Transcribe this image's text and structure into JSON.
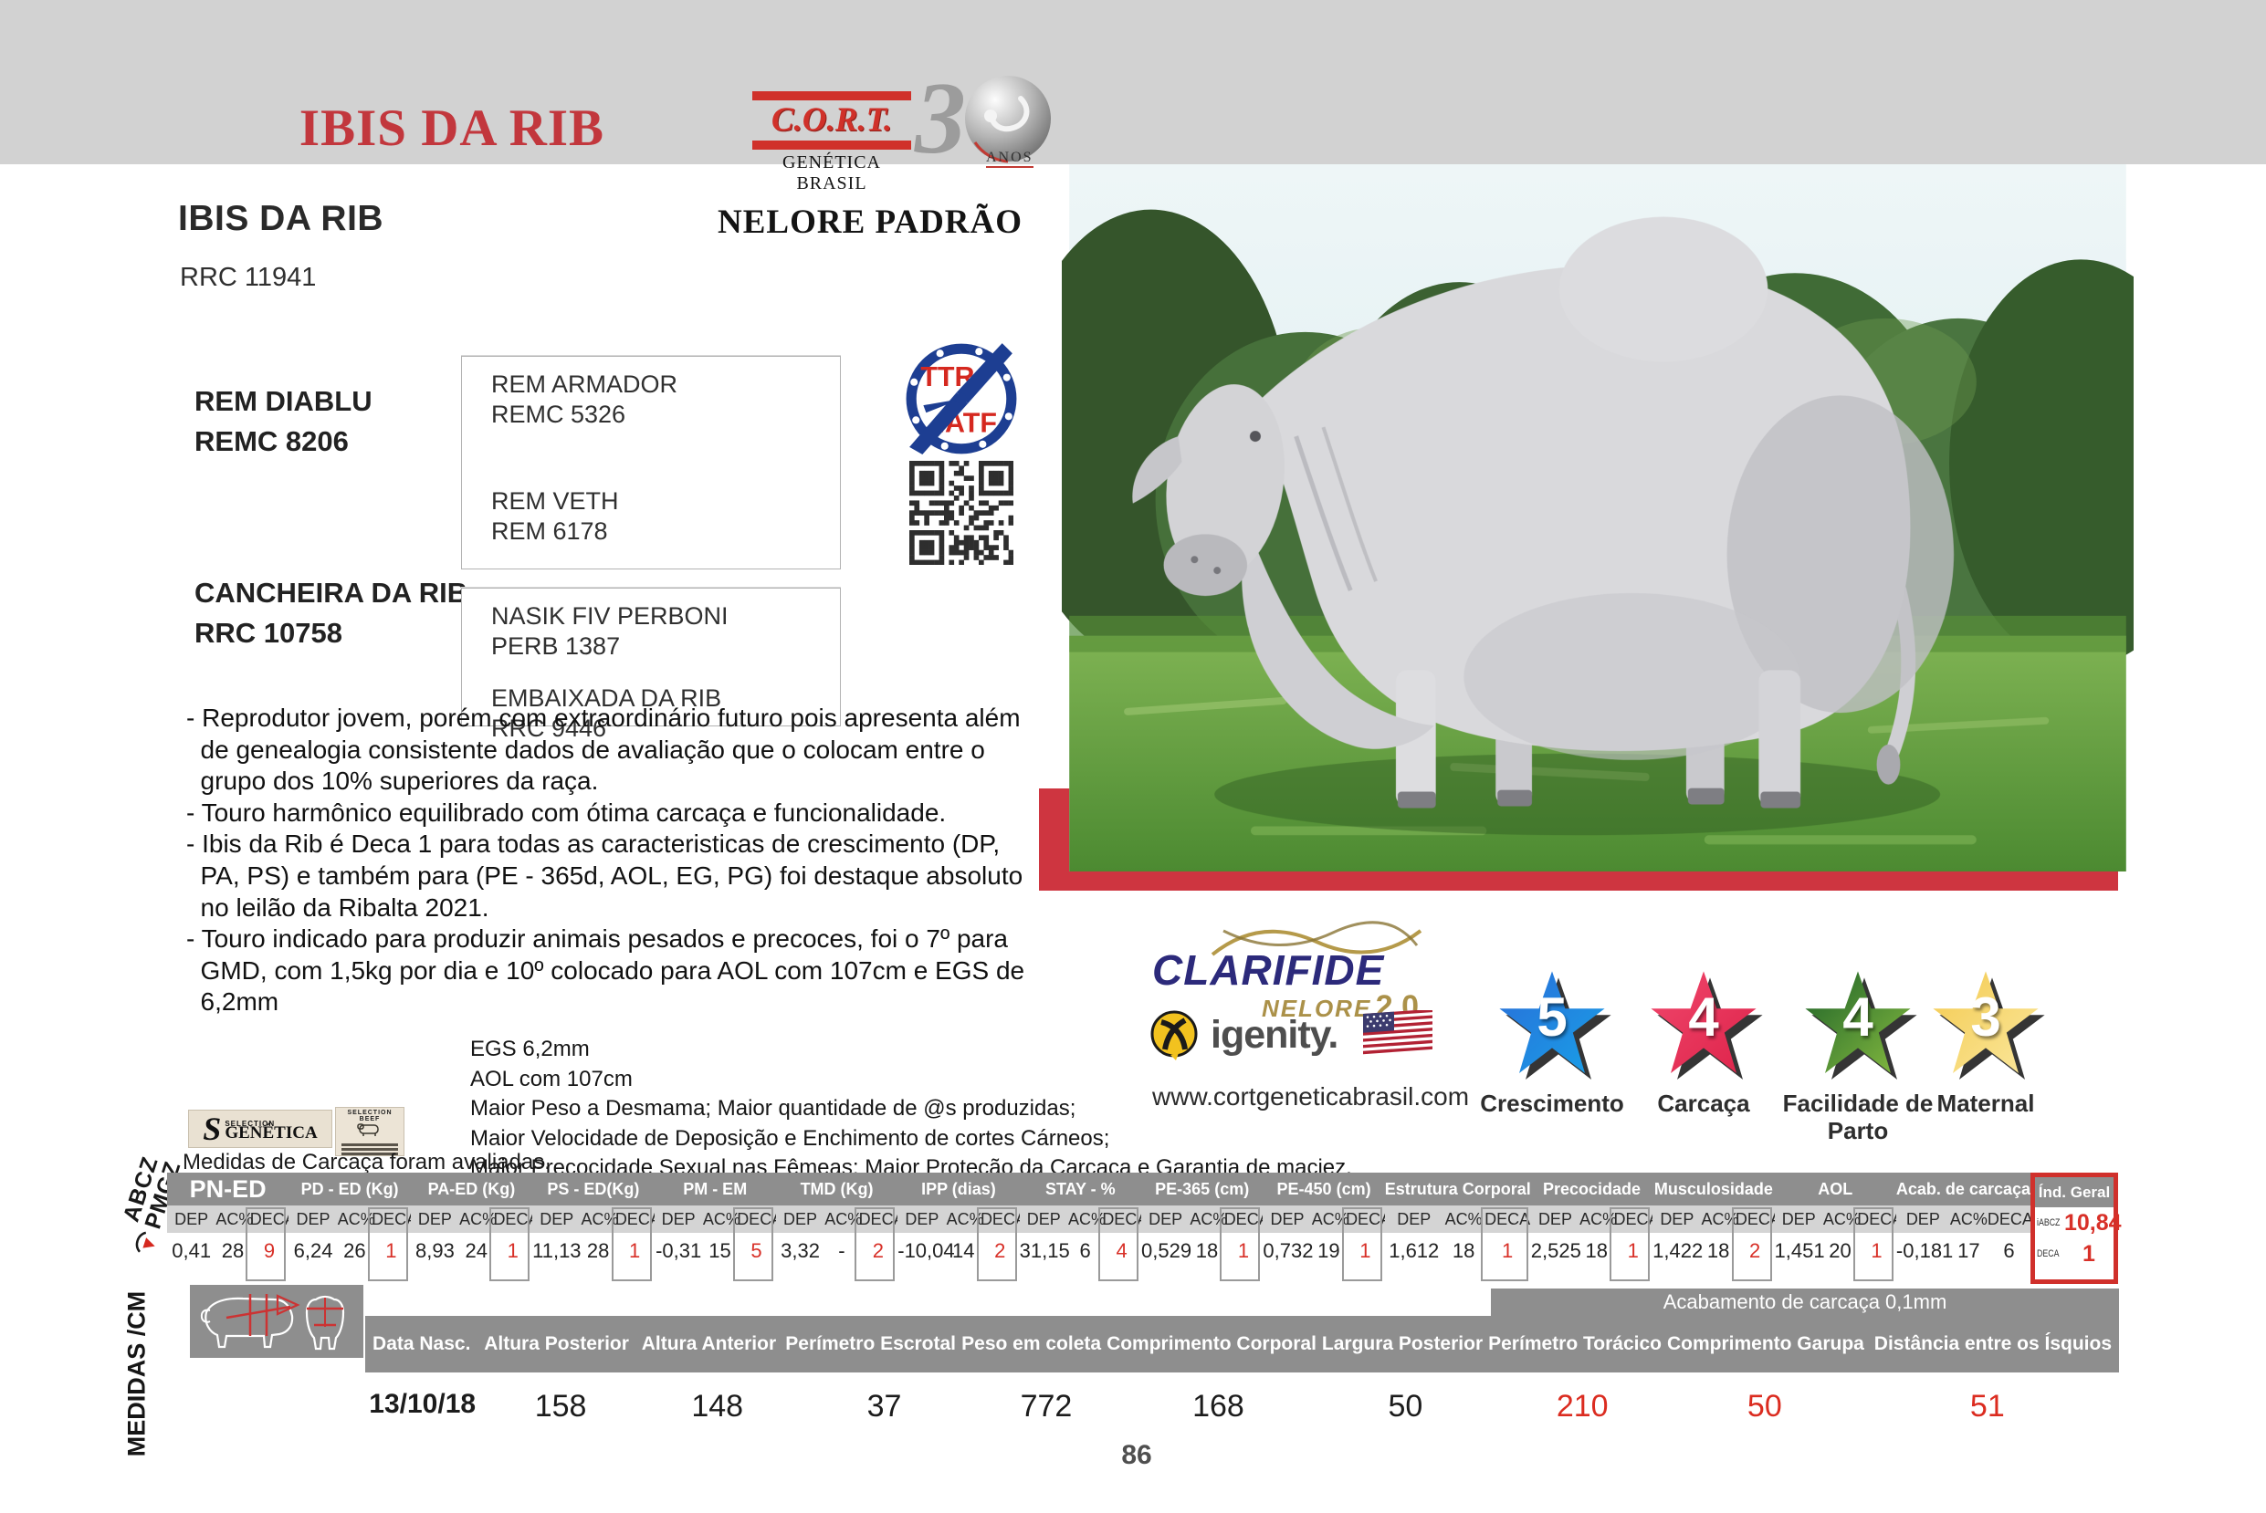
{
  "header": {
    "title": "IBIS DA RIB",
    "cort": {
      "name": "C.O.R.T.",
      "subtitle": "GENÉTICA BRASIL"
    },
    "anniversary": {
      "digit": "3",
      "anos": "ANOS"
    }
  },
  "animal": {
    "name": "IBIS DA RIB",
    "registration": "RRC 11941",
    "breed": "NELORE PADRÃO"
  },
  "pedigree": {
    "sire_name": "REM DIABLU",
    "sire_reg": "REMC 8206",
    "dam_name": "CANCHEIRA DA RIB",
    "dam_reg": "RRC 10758",
    "paternal_grandsire_name": "REM ARMADOR",
    "paternal_grandsire_reg": "REMC 5326",
    "paternal_granddam_name": "REM VETH",
    "paternal_granddam_reg": "REM 6178",
    "maternal_grandsire_name": "NASIK FIV PERBONI",
    "maternal_grandsire_reg": "PERB 1387",
    "maternal_granddam_name": "EMBAIXADA DA RIB",
    "maternal_granddam_reg": "RRC 9446"
  },
  "badges": {
    "ttr": "TTR",
    "iatf": "IATF"
  },
  "description_lines": [
    "- Reprodutor jovem, porém com extraordinário futuro pois apresenta além",
    "  de genealogia consistente dados de avaliação que o colocam entre o",
    "  grupo dos 10% superiores da raça.",
    "- Touro harmônico equilibrado com ótima carcaça e funcionalidade.",
    "- Ibis da Rib é Deca 1 para todas as caracteristicas de crescimento (DP,",
    "  PA, PS) e também para (PE - 365d, AOL, EG, PG) foi destaque absoluto",
    "  no leilão da Ribalta 2021.",
    "- Touro indicado para produzir animais pesados e precoces, foi o 7º para",
    "  GMD, com 1,5kg por dia e 10º colocado para AOL com 107cm e EGS de",
    "  6,2mm"
  ],
  "highlight_lines": [
    "EGS 6,2mm",
    "AOL com 107cm",
    "Maior Peso a Desmama; Maior quantidade de @s produzidas;",
    "Maior Velocidade de Deposição e Enchimento de cortes Cárneos;",
    "Maior Precocidade Sexual nas Fêmeas; Maior Proteção da Carcaça e Garantia de maciez."
  ],
  "carcass": {
    "genetica_small": "SELECTION",
    "genetica_name": "GENÉTICA",
    "genetica_initial": "S",
    "beef_stamp": "SELECTION BEEF",
    "note": "Medidas de Carcaça foram avaliadas."
  },
  "side_labels": {
    "abcz": "ABCZ",
    "pmgz": "PMGZ",
    "medidas": "MEDIDAS /CM"
  },
  "genetic_table": {
    "sub_headers": {
      "dep": "DEP",
      "acc": "AC%",
      "deca": "DECA"
    },
    "groups": [
      {
        "trait": "PN-ED",
        "dep": "0,41",
        "acc": "28",
        "deca": "9",
        "big": true,
        "boxed": true
      },
      {
        "trait": "PD - ED (Kg)",
        "dep": "6,24",
        "acc": "26",
        "deca": "1",
        "boxed": true
      },
      {
        "trait": "PA-ED (Kg)",
        "dep": "8,93",
        "acc": "24",
        "deca": "1",
        "boxed": true
      },
      {
        "trait": "PS - ED(Kg)",
        "dep": "11,13",
        "acc": "28",
        "deca": "1",
        "boxed": true
      },
      {
        "trait": "PM - EM",
        "dep": "-0,31",
        "acc": "15",
        "deca": "5",
        "boxed": true
      },
      {
        "trait": "TMD (Kg)",
        "dep": "3,32",
        "acc": "-",
        "deca": "2",
        "boxed": true
      },
      {
        "trait": "IPP (dias)",
        "dep": "-10,04",
        "acc": "14",
        "deca": "2",
        "boxed": true
      },
      {
        "trait": "STAY - %",
        "dep": "31,15",
        "acc": "6",
        "deca": "4",
        "boxed": true
      },
      {
        "trait": "PE-365 (cm)",
        "dep": "0,529",
        "acc": "18",
        "deca": "1",
        "boxed": true
      },
      {
        "trait": "PE-450 (cm)",
        "dep": "0,732",
        "acc": "19",
        "deca": "1",
        "boxed": true
      },
      {
        "trait": "Estrutura Corporal",
        "dep": "1,612",
        "acc": "18",
        "deca": "1",
        "boxed": true
      },
      {
        "trait": "Precocidade",
        "dep": "2,525",
        "acc": "18",
        "deca": "1",
        "boxed": true
      },
      {
        "trait": "Musculosidade",
        "dep": "1,422",
        "acc": "18",
        "deca": "2",
        "boxed": true
      },
      {
        "trait": "AOL",
        "dep": "1,451",
        "acc": "20",
        "deca": "1",
        "boxed": true
      },
      {
        "trait": "Acab. de carcaça",
        "dep": "-0,181",
        "acc": "17",
        "deca": "6",
        "boxed": false
      }
    ],
    "ind_geral": {
      "header": "Índ. Geral",
      "rows": [
        {
          "label": "iABCZ",
          "value": "10,84"
        },
        {
          "label": "DECA",
          "value": "1"
        }
      ]
    }
  },
  "measures": {
    "acabamento_note": "Acabamento de carcaça 0,1mm",
    "columns": [
      {
        "label": "Data  Nasc.",
        "value": "13/10/18",
        "red": false,
        "bold": true
      },
      {
        "label": "Altura Posterior",
        "value": "158",
        "red": false
      },
      {
        "label": "Altura Anterior",
        "value": "148",
        "red": false
      },
      {
        "label": "Perímetro Escrotal",
        "value": "37",
        "red": false
      },
      {
        "label": "Peso em coleta",
        "value": "772",
        "red": false
      },
      {
        "label": "Comprimento Corporal",
        "value": "168",
        "red": false
      },
      {
        "label": "Largura Posterior",
        "value": "50",
        "red": false
      },
      {
        "label": "Perímetro Torácico",
        "value": "210",
        "red": true
      },
      {
        "label": "Comprimento Garupa",
        "value": "50",
        "red": true
      },
      {
        "label": "Distância entre os Ísquios",
        "value": "51",
        "red": true
      }
    ]
  },
  "partners": {
    "clarifide_name": "CLARIFIDE",
    "clarifide_sub": "NELORE",
    "clarifide_version": "2.0",
    "igenity_name": "igenity.",
    "website": "www.cortgeneticabrasil.com"
  },
  "stars": [
    {
      "value": "5",
      "label": "Crescimento",
      "color_top": "#2a6cd8",
      "color_bottom": "#18a2e8"
    },
    {
      "value": "4",
      "label": "Carcaça",
      "color_top": "#f0486d",
      "color_bottom": "#dd2148"
    },
    {
      "value": "4",
      "label": "Facilidade de Parto",
      "color_top": "#1a5f28",
      "color_bottom": "#8cc041"
    },
    {
      "value": "3",
      "label": "Maternal",
      "color_top": "#f3c94e",
      "color_bottom": "#fbe9a0"
    }
  ],
  "page": {
    "number": "86"
  }
}
